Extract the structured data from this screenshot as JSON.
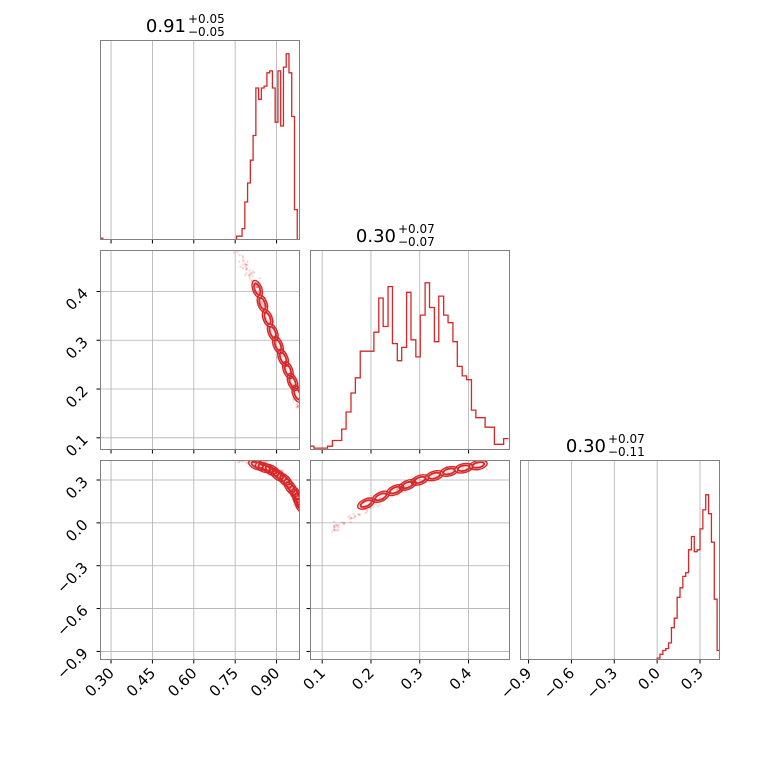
{
  "chart_data": {
    "type": "corner",
    "color": "#d62728",
    "grid": true,
    "parameters": [
      {
        "range": [
          0.26,
          0.985
        ],
        "ticks": [
          0.3,
          0.45,
          0.6,
          0.75,
          0.9
        ],
        "tick_labels": [
          "0.30",
          "0.45",
          "0.60",
          "0.75",
          "0.90"
        ]
      },
      {
        "range": [
          0.075,
          0.485
        ],
        "ticks": [
          0.1,
          0.2,
          0.3,
          0.4
        ],
        "tick_labels": [
          "0.1",
          "0.2",
          "0.3",
          "0.4"
        ]
      },
      {
        "range": [
          -0.96,
          0.44
        ],
        "ticks": [
          -0.9,
          -0.6,
          -0.3,
          0.0,
          0.3
        ],
        "tick_labels": [
          "−0.9",
          "−0.6",
          "−0.3",
          "0.0",
          "0.3"
        ]
      }
    ],
    "titles": [
      {
        "value": "0.91",
        "plus": "+0.05",
        "minus": "−0.05"
      },
      {
        "value": "0.30",
        "plus": "+0.07",
        "minus": "−0.07"
      },
      {
        "value": "0.30",
        "plus": "+0.07",
        "minus": "−0.11"
      }
    ],
    "histograms": [
      {
        "edges": [
          0.26,
          0.27,
          0.755,
          0.765,
          0.775,
          0.785,
          0.795,
          0.805,
          0.815,
          0.825,
          0.835,
          0.845,
          0.855,
          0.865,
          0.875,
          0.885,
          0.895,
          0.905,
          0.915,
          0.925,
          0.935,
          0.945,
          0.955,
          0.965,
          0.975,
          0.985
        ],
        "counts": [
          0.01,
          0.0,
          0.02,
          0.02,
          0.06,
          0.2,
          0.3,
          0.42,
          0.55,
          0.8,
          0.74,
          0.8,
          0.81,
          0.88,
          0.89,
          0.8,
          0.62,
          0.89,
          0.6,
          0.91,
          0.98,
          0.88,
          0.65,
          0.16,
          0.0
        ]
      },
      {
        "edges": [
          0.075,
          0.083,
          0.111,
          0.121,
          0.13,
          0.14,
          0.149,
          0.159,
          0.168,
          0.178,
          0.187,
          0.197,
          0.206,
          0.216,
          0.225,
          0.235,
          0.244,
          0.254,
          0.263,
          0.273,
          0.282,
          0.292,
          0.301,
          0.311,
          0.32,
          0.33,
          0.339,
          0.349,
          0.358,
          0.368,
          0.377,
          0.387,
          0.396,
          0.406,
          0.415,
          0.425,
          0.434,
          0.444,
          0.453,
          0.463,
          0.472,
          0.482
        ],
        "counts": [
          0.02,
          0.01,
          0.02,
          0.05,
          0.05,
          0.11,
          0.2,
          0.3,
          0.38,
          0.52,
          0.52,
          0.52,
          0.62,
          0.8,
          0.65,
          0.86,
          0.56,
          0.47,
          0.54,
          0.83,
          0.58,
          0.49,
          0.71,
          0.88,
          0.75,
          0.57,
          0.81,
          0.71,
          0.67,
          0.57,
          0.44,
          0.39,
          0.37,
          0.21,
          0.17,
          0.17,
          0.12,
          0.12,
          0.03,
          0.03,
          0.06
        ]
      },
      {
        "edges": [
          -0.96,
          0.0,
          0.02,
          0.04,
          0.06,
          0.08,
          0.1,
          0.12,
          0.14,
          0.16,
          0.18,
          0.2,
          0.22,
          0.24,
          0.26,
          0.28,
          0.3,
          0.32,
          0.34,
          0.36,
          0.38,
          0.4,
          0.42,
          0.44
        ],
        "counts": [
          0.0,
          0.01,
          0.03,
          0.05,
          0.06,
          0.09,
          0.17,
          0.22,
          0.33,
          0.38,
          0.44,
          0.46,
          0.58,
          0.65,
          0.57,
          0.58,
          0.69,
          0.79,
          0.87,
          0.77,
          0.62,
          0.32,
          0.05
        ]
      }
    ],
    "contours": [
      {
        "panel": [
          1,
          0
        ],
        "trend": [
          [
            0.83,
            0.405
          ],
          [
            0.88,
            0.325
          ],
          [
            0.93,
            0.255
          ],
          [
            0.975,
            0.19
          ]
        ],
        "scatter_trend": [
          [
            0.75,
            0.49
          ],
          [
            0.83,
            0.41
          ],
          [
            0.9,
            0.3
          ],
          [
            0.985,
            0.15
          ]
        ]
      },
      {
        "panel": [
          2,
          0
        ],
        "trend": [
          [
            0.83,
            0.405
          ],
          [
            0.88,
            0.37
          ],
          [
            0.93,
            0.3
          ],
          [
            0.97,
            0.2
          ],
          [
            0.985,
            0.13
          ]
        ],
        "scatter_trend": [
          [
            0.76,
            0.44
          ],
          [
            0.85,
            0.42
          ],
          [
            0.93,
            0.33
          ],
          [
            0.985,
            0.1
          ]
        ]
      },
      {
        "panel": [
          2,
          1
        ],
        "trend": [
          [
            0.19,
            0.135
          ],
          [
            0.25,
            0.23
          ],
          [
            0.3,
            0.3
          ],
          [
            0.36,
            0.36
          ],
          [
            0.42,
            0.405
          ]
        ],
        "scatter_trend": [
          [
            0.12,
            -0.05
          ],
          [
            0.2,
            0.12
          ],
          [
            0.3,
            0.3
          ],
          [
            0.45,
            0.43
          ]
        ]
      }
    ]
  }
}
